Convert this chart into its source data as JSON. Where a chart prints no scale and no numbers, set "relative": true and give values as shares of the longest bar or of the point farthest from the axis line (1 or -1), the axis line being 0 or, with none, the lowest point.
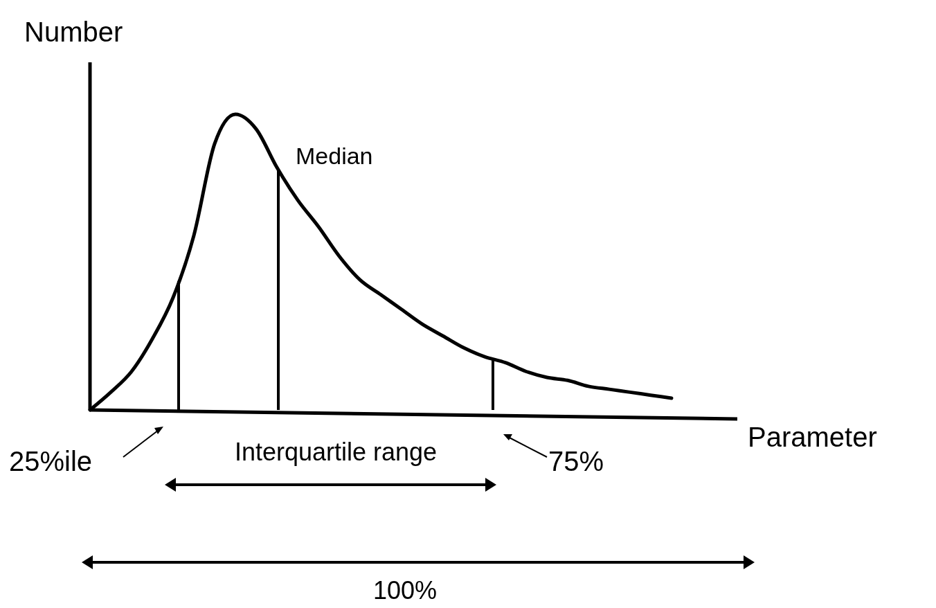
{
  "chart_data": {
    "type": "line",
    "relative": true,
    "xlabel": "Parameter",
    "ylabel": "Number",
    "categories": [
      null,
      null,
      null,
      null,
      null,
      null,
      null,
      null,
      null,
      null,
      null,
      null,
      null,
      null,
      null,
      null,
      null,
      null,
      null,
      null,
      null,
      null,
      null,
      null,
      null,
      null,
      null,
      null,
      null
    ],
    "series": [
      {
        "color": "#000000",
        "values": [
          0,
          0.06,
          0.13,
          0.24,
          0.38,
          0.59,
          0.9,
          1.0,
          0.95,
          0.82,
          0.71,
          0.62,
          0.52,
          0.44,
          0.39,
          0.34,
          0.29,
          0.25,
          0.21,
          0.18,
          0.16,
          0.13,
          0.11,
          0.1,
          0.08,
          0.07,
          0.06,
          0.05,
          0.04
        ]
      }
    ],
    "annotations": [
      "Interquartile range",
      "100%",
      "25%ile",
      "Median",
      "75%"
    ]
  }
}
